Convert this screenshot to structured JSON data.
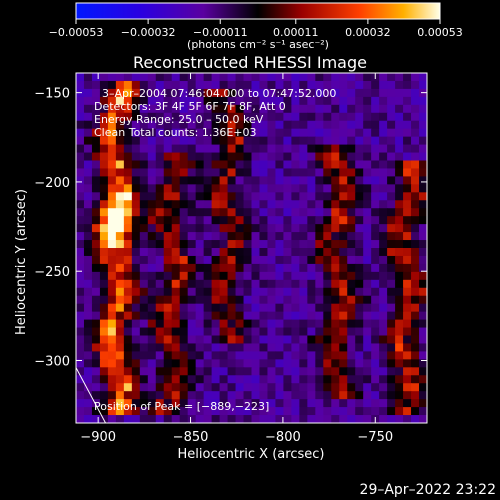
{
  "chart_data": {
    "type": "heatmap",
    "title": "Reconstructed RHESSI Image",
    "xlabel": "Heliocentric X (arcsec)",
    "ylabel": "Heliocentric Y (arcsec)",
    "xlim": [
      -912,
      -722
    ],
    "ylim": [
      -335,
      -139
    ],
    "x_ticks": [
      -900,
      -850,
      -800,
      -750
    ],
    "x_tick_labels": [
      "−900",
      "−850",
      "−800",
      "−750"
    ],
    "y_ticks": [
      -150,
      -200,
      -250,
      -300
    ],
    "y_tick_labels": [
      "−150",
      "−200",
      "−250",
      "−300"
    ],
    "colorbar": {
      "min": -0.00053,
      "max": 0.00053,
      "ticks": [
        -0.00053,
        -0.00032,
        -0.00011,
        0.00011,
        0.00032,
        0.00053
      ],
      "tick_labels": [
        "−0.00053",
        "−0.00032",
        "−0.00011",
        "0.00011",
        "0.00032",
        "0.00053"
      ],
      "unit_label": "(photons cm⁻² s⁻¹ asec⁻²)"
    },
    "annotations": [
      "3–Apr–2004 07:46:04.000 to 07:47:52.000",
      "Detectors: 3F 4F 5F 6F 7F 8F, Att 0",
      "Energy Range: 25.0 – 50.0 keV",
      "Clean     Total counts: 1.36E+03"
    ],
    "peak_label": "Position of Peak = [−889,−223]",
    "peak": [
      -889,
      -223
    ],
    "bright_ridges": [
      {
        "x": -890,
        "y_from": -145,
        "y_to": -330,
        "intensity": 0.0005
      },
      {
        "x": -860,
        "y_from": -185,
        "y_to": -330,
        "intensity": 0.0003
      },
      {
        "x": -830,
        "y_from": -150,
        "y_to": -290,
        "intensity": 0.00028
      },
      {
        "x": -770,
        "y_from": -180,
        "y_to": -320,
        "intensity": 0.00032
      },
      {
        "x": -733,
        "y_from": -190,
        "y_to": -330,
        "intensity": 0.00034
      }
    ]
  },
  "footer_date": "29–Apr–2022 23:22"
}
